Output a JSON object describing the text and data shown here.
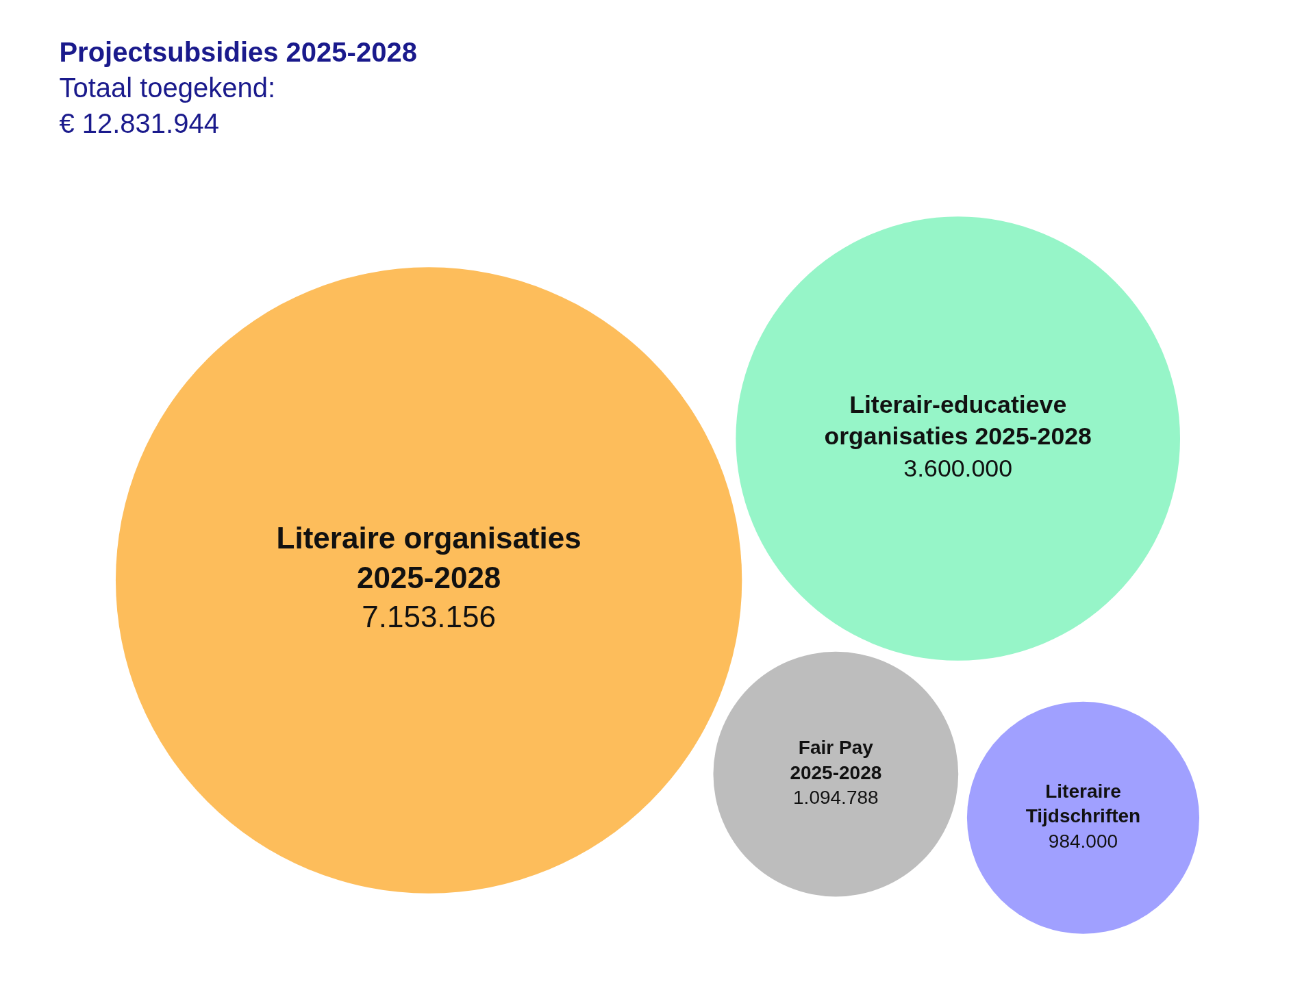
{
  "chart_data": {
    "type": "other",
    "title": "Projectsubsidies 2025-2028",
    "subtitle": "Totaal toegekend:\n€ 12.831.944",
    "categories": [
      "Literaire organisaties 2025-2028",
      "Literair-educatieve organisaties 2025-2028",
      "Literaire Tijdschriften",
      "Fair Pay 2025-2028"
    ],
    "values": [
      7153156,
      3600000,
      984000,
      1094788
    ],
    "colors": [
      "#fdbd5b",
      "#96f5c8",
      "#a0a0ff",
      "#bdbdbd"
    ],
    "value_labels": [
      "7.153.156",
      "3.600.000",
      "984.000",
      "1.094.788"
    ]
  }
}
